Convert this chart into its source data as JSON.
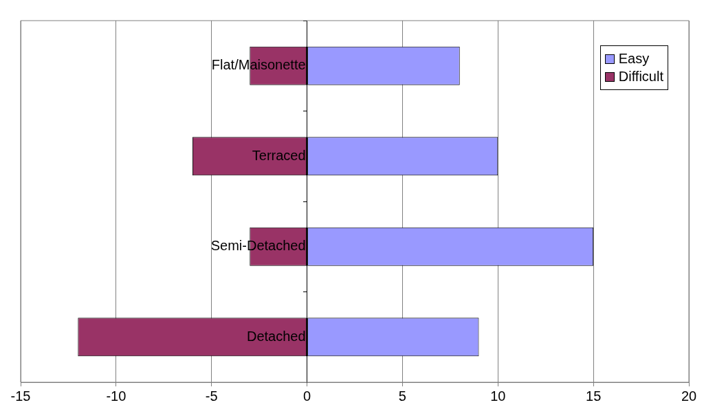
{
  "chart_data": {
    "type": "bar",
    "orientation": "horizontal",
    "stacked": true,
    "categories": [
      "Flat/Maisonette",
      "Terraced",
      "Semi-Detached",
      "Detached"
    ],
    "series": [
      {
        "name": "Easy",
        "color": "#9999ff",
        "values": [
          8,
          10,
          15,
          9
        ]
      },
      {
        "name": "Difficult",
        "color": "#993366",
        "values": [
          -3,
          -6,
          -3,
          -12
        ]
      }
    ],
    "xlim": [
      -15,
      20
    ],
    "xticks": [
      -15,
      -10,
      -5,
      0,
      5,
      10,
      15,
      20
    ],
    "grid": "x",
    "legend": "top right"
  }
}
